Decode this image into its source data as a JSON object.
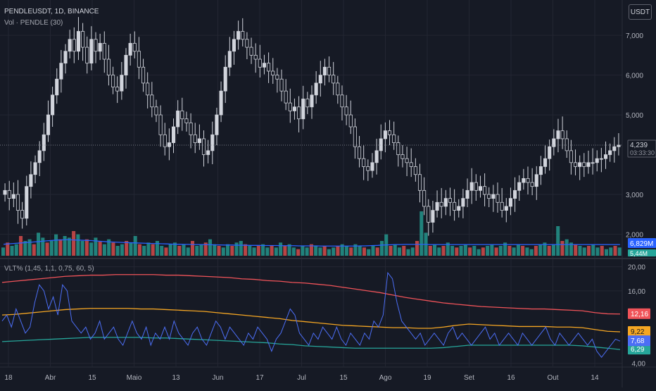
{
  "header": {
    "symbol_line": "PENDLEUSDT, 1D, BINANCE",
    "volume_line": "Vol · PENDLE (30)",
    "indicator_line": "VLT% (1,45, 1,1, 0,75, 60, 5)",
    "currency_button": "USDT"
  },
  "colors": {
    "background": "#161a25",
    "grid": "#232632",
    "up_candle": "#d1d4dc",
    "down_candle": "#d1d4dc",
    "vol_up": "#26a69a",
    "vol_down": "#ef5350",
    "vol_ma": "#2962ff",
    "upper_band": "#f05359",
    "middle_band": "#f5a623",
    "lower_band": "#26a69a",
    "volatility_line": "#4c6ef5"
  },
  "chart_data": [
    {
      "type": "candlestick",
      "pane": "price",
      "y_ticks": [
        "7,000",
        "6,000",
        "5,000",
        "3,000",
        "2,000"
      ],
      "y_tick_values": [
        7.0,
        6.0,
        5.0,
        3.0,
        2.0
      ],
      "ylim": [
        1.6,
        7.8
      ],
      "x_ticks": [
        "18",
        "Abr",
        "15",
        "Maio",
        "13",
        "Jun",
        "17",
        "Jul",
        "15",
        "Ago",
        "19",
        "Set",
        "16",
        "Out",
        "14"
      ],
      "last_price_label": "4,239",
      "last_price_value": 4.239,
      "countdown_label": "03:33:30",
      "closes": [
        3.1,
        2.9,
        3.0,
        2.6,
        2.4,
        3.2,
        3.5,
        3.8,
        4.1,
        4.5,
        5.0,
        5.5,
        5.9,
        6.3,
        6.6,
        6.9,
        6.6,
        7.1,
        6.7,
        6.3,
        6.9,
        6.6,
        6.8,
        6.4,
        6.0,
        5.7,
        5.6,
        6.0,
        6.5,
        6.8,
        6.6,
        6.2,
        5.8,
        5.5,
        5.2,
        5.0,
        4.5,
        4.2,
        4.3,
        4.7,
        5.1,
        4.9,
        4.8,
        4.5,
        4.3,
        4.4,
        4.0,
        4.1,
        4.5,
        5.0,
        5.6,
        6.2,
        6.6,
        6.9,
        7.1,
        6.9,
        6.7,
        6.5,
        6.4,
        6.2,
        6.3,
        6.1,
        6.0,
        5.9,
        5.6,
        5.3,
        5.1,
        5.2,
        4.9,
        5.4,
        5.2,
        5.5,
        5.8,
        6.0,
        6.2,
        6.0,
        5.8,
        5.5,
        5.2,
        5.0,
        4.7,
        4.2,
        3.9,
        3.7,
        3.6,
        3.8,
        4.1,
        4.4,
        4.6,
        4.5,
        4.3,
        4.0,
        3.9,
        3.8,
        3.7,
        3.5,
        3.1,
        2.7,
        2.3,
        2.6,
        2.8,
        2.7,
        2.9,
        2.8,
        2.6,
        2.7,
        2.9,
        3.1,
        3.3,
        3.1,
        3.2,
        3.0,
        2.9,
        3.0,
        2.8,
        2.6,
        2.7,
        2.9,
        3.1,
        3.3,
        3.4,
        3.3,
        3.2,
        3.5,
        3.7,
        3.9,
        4.2,
        4.4,
        4.6,
        4.4,
        4.1,
        3.8,
        3.7,
        3.8,
        3.7,
        3.8,
        3.8,
        3.9,
        3.9,
        4.0,
        4.1,
        4.2,
        4.24
      ]
    },
    {
      "type": "bar",
      "pane": "volume",
      "series_name": "Vol · PENDLE (30)",
      "ma_label": "6,829M",
      "ma_value": 6.829,
      "vol_label": "5,44M",
      "values": [
        5,
        8,
        6,
        7,
        12,
        9,
        10,
        7,
        14,
        11,
        8,
        9,
        13,
        10,
        12,
        11,
        15,
        13,
        9,
        10,
        8,
        11,
        9,
        7,
        10,
        8,
        6,
        7,
        9,
        8,
        12,
        7,
        6,
        8,
        7,
        9,
        6,
        5,
        7,
        8,
        6,
        7,
        5,
        9,
        6,
        7,
        8,
        10,
        7,
        6,
        5,
        7,
        6,
        8,
        9,
        7,
        6,
        5,
        6,
        7,
        5,
        6,
        5,
        8,
        6,
        7,
        5,
        4,
        6,
        5,
        7,
        6,
        5,
        6,
        4,
        5,
        6,
        7,
        6,
        5,
        7,
        6,
        5,
        4,
        6,
        5,
        9,
        13,
        6,
        7,
        5,
        6,
        4,
        5,
        9,
        27,
        14,
        6,
        7,
        5,
        6,
        8,
        6,
        5,
        6,
        7,
        5,
        6,
        4,
        5,
        6,
        7,
        5,
        6,
        8,
        6,
        5,
        7,
        6,
        5,
        4,
        6,
        7,
        8,
        6,
        7,
        18,
        9,
        10,
        8,
        7,
        6,
        5,
        6,
        7,
        5,
        6,
        4,
        5,
        6,
        5
      ],
      "ma": [
        7,
        7.2,
        7.4,
        7.6,
        7.8,
        8.0,
        8.2,
        8.4,
        8.6,
        8.9,
        9.1,
        9.3,
        9.5,
        9.6,
        9.7,
        9.7,
        9.6,
        9.5,
        9.4,
        9.3,
        9.2,
        9.0,
        8.8,
        8.6,
        8.4,
        8.3,
        8.2,
        8.1,
        8.0,
        7.9,
        7.8,
        7.7,
        7.6,
        7.5,
        7.4,
        7.4,
        7.3,
        7.2,
        7.1,
        7.0,
        7.0,
        6.9,
        6.9,
        6.8,
        6.8,
        6.8,
        6.7,
        6.7,
        6.6,
        6.6,
        6.5,
        6.5,
        6.5,
        6.4,
        6.4,
        6.4,
        6.3,
        6.3,
        6.3,
        6.2,
        6.2,
        6.2,
        6.2,
        6.1,
        6.1,
        6.1,
        6.1,
        6.0,
        6.0,
        6.0,
        6.0,
        6.0,
        5.9,
        5.9,
        5.9,
        5.9,
        5.9,
        5.9,
        5.9,
        5.9,
        5.9,
        6.0,
        6.0,
        6.1,
        6.2,
        6.3,
        6.5,
        6.6,
        6.7,
        6.8,
        6.8,
        6.9,
        6.9,
        6.9,
        6.9,
        6.9,
        6.9,
        6.8,
        6.8,
        6.8,
        6.8,
        6.8,
        6.8,
        6.8,
        6.8,
        6.8,
        6.8,
        6.8,
        6.8,
        6.8,
        6.8,
        6.8,
        6.8,
        6.8,
        6.8,
        6.8,
        6.8,
        6.8,
        6.8,
        6.8,
        6.8,
        6.8,
        6.8,
        6.8,
        6.8,
        6.8,
        6.8,
        6.8,
        6.8,
        6.8,
        6.8,
        6.8,
        6.8,
        6.8,
        6.8,
        6.8,
        6.8,
        6.8,
        6.8,
        6.8,
        6.8
      ]
    },
    {
      "type": "line",
      "pane": "indicator",
      "title": "VLT% (1,45, 1,1, 0,75, 60, 5)",
      "y_ticks": [
        "20,00",
        "16,00",
        "4,00"
      ],
      "y_tick_values": [
        20,
        16,
        4
      ],
      "ylim": [
        3.5,
        21
      ],
      "series": [
        {
          "name": "upper",
          "label": "12,16",
          "value": 12.16,
          "values": [
            17.4,
            17.6,
            17.8,
            18.0,
            18.2,
            18.4,
            18.5,
            18.6,
            18.6,
            18.7,
            18.7,
            18.7,
            18.7,
            18.6,
            18.6,
            18.5,
            18.4,
            18.3,
            18.2,
            18.0,
            17.9,
            17.7,
            17.6,
            17.4,
            17.3,
            17.1,
            16.9,
            16.6,
            16.3,
            16.0,
            15.7,
            15.3,
            14.9,
            14.6,
            14.3,
            14.0,
            13.8,
            13.6,
            13.4,
            13.3,
            13.2,
            13.1,
            13.0,
            13.0,
            12.9,
            12.8,
            12.7,
            12.4,
            12.2,
            12.16
          ]
        },
        {
          "name": "middle",
          "label": "9,22",
          "value": 9.22,
          "values": [
            12.0,
            12.1,
            12.3,
            12.5,
            12.7,
            12.9,
            13.0,
            13.1,
            13.1,
            13.1,
            13.1,
            13.0,
            13.0,
            12.9,
            12.8,
            12.7,
            12.6,
            12.4,
            12.2,
            12.0,
            11.8,
            11.6,
            11.4,
            11.1,
            10.9,
            10.7,
            10.5,
            10.3,
            10.2,
            10.1,
            10.0,
            9.9,
            9.9,
            9.8,
            9.8,
            10.0,
            10.3,
            10.5,
            10.4,
            10.3,
            10.2,
            10.1,
            10.1,
            10.1,
            10.0,
            10.0,
            9.9,
            9.6,
            9.3,
            9.22
          ]
        },
        {
          "name": "lower",
          "label": "6,29",
          "value": 6.29,
          "values": [
            7.6,
            7.7,
            7.8,
            7.9,
            8.0,
            8.1,
            8.2,
            8.3,
            8.3,
            8.3,
            8.3,
            8.3,
            8.2,
            8.2,
            8.1,
            8.0,
            7.9,
            7.8,
            7.7,
            7.6,
            7.5,
            7.4,
            7.2,
            7.1,
            6.9,
            6.8,
            6.7,
            6.6,
            6.5,
            6.5,
            6.5,
            6.5,
            6.5,
            6.5,
            6.5,
            6.6,
            6.8,
            7.0,
            7.0,
            7.0,
            7.0,
            7.0,
            7.0,
            7.0,
            7.0,
            7.0,
            6.9,
            6.7,
            6.5,
            6.29
          ]
        },
        {
          "name": "vlt",
          "label": "7,68",
          "value": 7.68,
          "values": [
            11,
            12,
            10,
            13,
            11,
            9,
            10,
            14,
            17,
            16,
            13,
            15,
            12,
            17,
            16,
            11,
            10,
            9,
            10,
            8,
            9,
            11,
            8,
            9,
            10,
            8,
            7,
            9,
            11,
            9,
            8,
            10,
            7,
            9,
            8,
            10,
            8,
            11,
            9,
            8,
            7,
            9,
            10,
            8,
            7,
            9,
            11,
            10,
            8,
            10,
            9,
            8,
            7,
            9,
            8,
            10,
            9,
            8,
            6,
            8,
            9,
            11,
            13,
            12,
            9,
            8,
            7,
            9,
            8,
            10,
            9,
            8,
            10,
            8,
            7,
            9,
            8,
            7,
            9,
            8,
            11,
            10,
            12,
            19,
            18,
            14,
            11,
            10,
            9,
            8,
            9,
            7,
            8,
            9,
            8,
            7,
            9,
            10,
            8,
            9,
            8,
            7,
            8,
            9,
            10,
            8,
            9,
            7,
            8,
            9,
            8,
            7,
            9,
            8,
            7,
            8,
            9,
            10,
            8,
            7,
            9,
            8,
            7,
            8,
            9,
            8,
            7,
            8,
            6,
            5,
            6,
            7,
            8,
            7.68
          ]
        }
      ]
    }
  ]
}
